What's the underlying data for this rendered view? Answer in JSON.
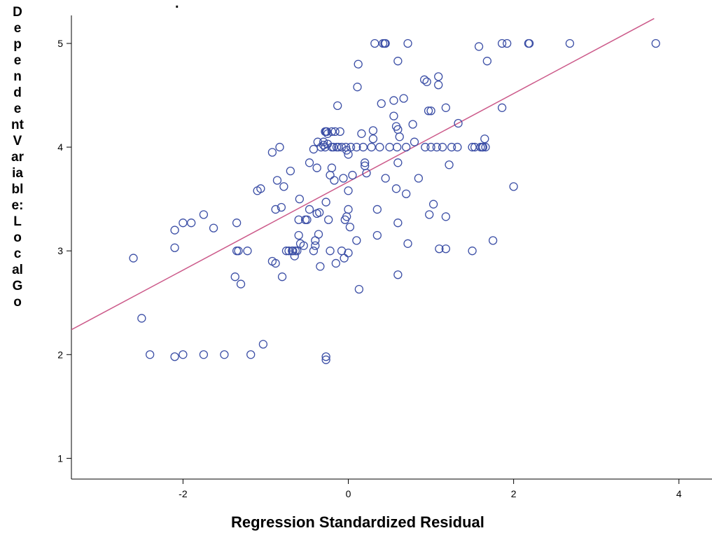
{
  "chart_data": {
    "type": "scatter",
    "title": ".",
    "xlabel": "Regression Standardized Residual",
    "ylabel": "Dependent Variable: Local Go",
    "ylabel_lines": [
      "D",
      "e",
      "p",
      "e",
      "n",
      "d",
      "e",
      "nt",
      "V",
      "ar",
      "ia",
      "bl",
      "e:",
      "L",
      "o",
      "c",
      "al",
      "G",
      "o"
    ],
    "xlim": [
      -3.35,
      4.4
    ],
    "ylim": [
      0.8,
      5.27
    ],
    "x_ticks": [
      "-2",
      "0",
      "2",
      "4"
    ],
    "y_ticks": [
      "1",
      "2",
      "3",
      "4",
      "5"
    ],
    "grid": false,
    "marker_color": "#3c4fa6",
    "fit_line_color": "#cc5a8a",
    "fit_line": {
      "x": [
        -3.35,
        3.7
      ],
      "y": [
        2.24,
        5.24
      ]
    },
    "points": [
      [
        -2.6,
        2.93
      ],
      [
        -2.5,
        2.35
      ],
      [
        -2.4,
        2.0
      ],
      [
        -2.1,
        3.2
      ],
      [
        -2.1,
        3.03
      ],
      [
        -2.1,
        1.98
      ],
      [
        -2.0,
        3.27
      ],
      [
        -2.0,
        2.0
      ],
      [
        -1.9,
        3.27
      ],
      [
        -1.75,
        3.35
      ],
      [
        -1.75,
        2.0
      ],
      [
        -1.63,
        3.22
      ],
      [
        -1.5,
        2.0
      ],
      [
        -1.35,
        3.27
      ],
      [
        -1.35,
        3.0
      ],
      [
        -1.33,
        3.0
      ],
      [
        -1.37,
        2.75
      ],
      [
        -1.3,
        2.68
      ],
      [
        -1.22,
        3.0
      ],
      [
        -1.18,
        2.0
      ],
      [
        -1.1,
        3.58
      ],
      [
        -1.06,
        3.6
      ],
      [
        -1.03,
        2.1
      ],
      [
        -0.92,
        3.95
      ],
      [
        -0.92,
        2.9
      ],
      [
        -0.88,
        2.88
      ],
      [
        -0.88,
        3.4
      ],
      [
        -0.86,
        3.68
      ],
      [
        -0.83,
        4.0
      ],
      [
        -0.81,
        3.42
      ],
      [
        -0.8,
        2.75
      ],
      [
        -0.78,
        3.62
      ],
      [
        -0.75,
        3.0
      ],
      [
        -0.72,
        3.0
      ],
      [
        -0.7,
        3.77
      ],
      [
        -0.68,
        3.0
      ],
      [
        -0.67,
        3.0
      ],
      [
        -0.65,
        2.95
      ],
      [
        -0.64,
        3.0
      ],
      [
        -0.62,
        3.0
      ],
      [
        -0.6,
        3.3
      ],
      [
        -0.6,
        3.15
      ],
      [
        -0.59,
        3.5
      ],
      [
        -0.58,
        3.07
      ],
      [
        -0.54,
        3.05
      ],
      [
        -0.52,
        3.3
      ],
      [
        -0.5,
        3.3
      ],
      [
        -0.47,
        3.4
      ],
      [
        -0.47,
        3.85
      ],
      [
        -0.42,
        3.98
      ],
      [
        -0.42,
        3.0
      ],
      [
        -0.4,
        3.05
      ],
      [
        -0.4,
        3.1
      ],
      [
        -0.38,
        3.36
      ],
      [
        -0.38,
        3.8
      ],
      [
        -0.37,
        4.05
      ],
      [
        -0.36,
        3.16
      ],
      [
        -0.35,
        3.37
      ],
      [
        -0.34,
        2.85
      ],
      [
        -0.33,
        4.0
      ],
      [
        -0.3,
        4.02
      ],
      [
        -0.3,
        4.05
      ],
      [
        -0.28,
        4.15
      ],
      [
        -0.28,
        4.0
      ],
      [
        -0.27,
        4.15
      ],
      [
        -0.27,
        3.47
      ],
      [
        -0.27,
        1.95
      ],
      [
        -0.27,
        1.98
      ],
      [
        -0.26,
        4.15
      ],
      [
        -0.25,
        4.03
      ],
      [
        -0.25,
        4.13
      ],
      [
        -0.24,
        3.3
      ],
      [
        -0.22,
        3.73
      ],
      [
        -0.22,
        3.0
      ],
      [
        -0.2,
        4.15
      ],
      [
        -0.2,
        4.0
      ],
      [
        -0.2,
        3.8
      ],
      [
        -0.18,
        4.0
      ],
      [
        -0.17,
        3.68
      ],
      [
        -0.16,
        4.15
      ],
      [
        -0.15,
        2.88
      ],
      [
        -0.14,
        4.0
      ],
      [
        -0.13,
        4.4
      ],
      [
        -0.12,
        4.0
      ],
      [
        -0.1,
        4.15
      ],
      [
        -0.08,
        4.0
      ],
      [
        -0.08,
        3.0
      ],
      [
        -0.06,
        3.7
      ],
      [
        -0.05,
        2.93
      ],
      [
        -0.04,
        3.3
      ],
      [
        -0.03,
        4.0
      ],
      [
        -0.02,
        3.97
      ],
      [
        -0.02,
        3.33
      ],
      [
        0.0,
        3.58
      ],
      [
        0.0,
        3.93
      ],
      [
        0.0,
        3.4
      ],
      [
        0.0,
        2.98
      ],
      [
        0.02,
        3.23
      ],
      [
        0.03,
        4.0
      ],
      [
        0.05,
        3.73
      ],
      [
        0.1,
        4.0
      ],
      [
        0.1,
        3.1
      ],
      [
        0.11,
        4.58
      ],
      [
        0.12,
        4.8
      ],
      [
        0.13,
        2.63
      ],
      [
        0.16,
        4.13
      ],
      [
        0.18,
        4.0
      ],
      [
        0.2,
        3.82
      ],
      [
        0.2,
        3.85
      ],
      [
        0.22,
        3.75
      ],
      [
        0.28,
        4.0
      ],
      [
        0.3,
        4.16
      ],
      [
        0.3,
        4.08
      ],
      [
        0.32,
        5.0
      ],
      [
        0.35,
        3.15
      ],
      [
        0.35,
        3.4
      ],
      [
        0.38,
        4.0
      ],
      [
        0.4,
        4.42
      ],
      [
        0.42,
        5.0
      ],
      [
        0.44,
        5.0
      ],
      [
        0.45,
        5.0
      ],
      [
        0.45,
        3.7
      ],
      [
        0.5,
        4.0
      ],
      [
        0.55,
        4.3
      ],
      [
        0.55,
        4.45
      ],
      [
        0.58,
        3.6
      ],
      [
        0.58,
        4.2
      ],
      [
        0.59,
        4.0
      ],
      [
        0.6,
        3.27
      ],
      [
        0.6,
        3.85
      ],
      [
        0.6,
        2.77
      ],
      [
        0.6,
        4.17
      ],
      [
        0.6,
        4.83
      ],
      [
        0.62,
        4.1
      ],
      [
        0.67,
        4.47
      ],
      [
        0.7,
        4.0
      ],
      [
        0.7,
        3.55
      ],
      [
        0.72,
        5.0
      ],
      [
        0.72,
        3.07
      ],
      [
        0.78,
        4.22
      ],
      [
        0.8,
        4.05
      ],
      [
        0.85,
        3.7
      ],
      [
        0.92,
        4.65
      ],
      [
        0.93,
        4.0
      ],
      [
        0.95,
        4.63
      ],
      [
        0.97,
        4.35
      ],
      [
        0.98,
        3.35
      ],
      [
        1.0,
        4.35
      ],
      [
        1.0,
        4.0
      ],
      [
        1.03,
        3.45
      ],
      [
        1.07,
        4.0
      ],
      [
        1.09,
        4.68
      ],
      [
        1.09,
        4.6
      ],
      [
        1.1,
        3.02
      ],
      [
        1.14,
        4.0
      ],
      [
        1.18,
        3.02
      ],
      [
        1.18,
        4.38
      ],
      [
        1.18,
        3.33
      ],
      [
        1.22,
        3.83
      ],
      [
        1.25,
        4.0
      ],
      [
        1.32,
        4.0
      ],
      [
        1.33,
        4.23
      ],
      [
        1.5,
        4.0
      ],
      [
        1.5,
        3.0
      ],
      [
        1.53,
        4.0
      ],
      [
        1.58,
        4.97
      ],
      [
        1.6,
        4.0
      ],
      [
        1.62,
        4.0
      ],
      [
        1.63,
        4.0
      ],
      [
        1.65,
        4.08
      ],
      [
        1.66,
        4.0
      ],
      [
        1.68,
        4.83
      ],
      [
        1.75,
        3.1
      ],
      [
        1.86,
        4.38
      ],
      [
        1.86,
        5.0
      ],
      [
        1.92,
        5.0
      ],
      [
        2.0,
        3.62
      ],
      [
        2.18,
        5.0
      ],
      [
        2.19,
        5.0
      ],
      [
        2.68,
        5.0
      ],
      [
        3.72,
        5.0
      ]
    ]
  }
}
